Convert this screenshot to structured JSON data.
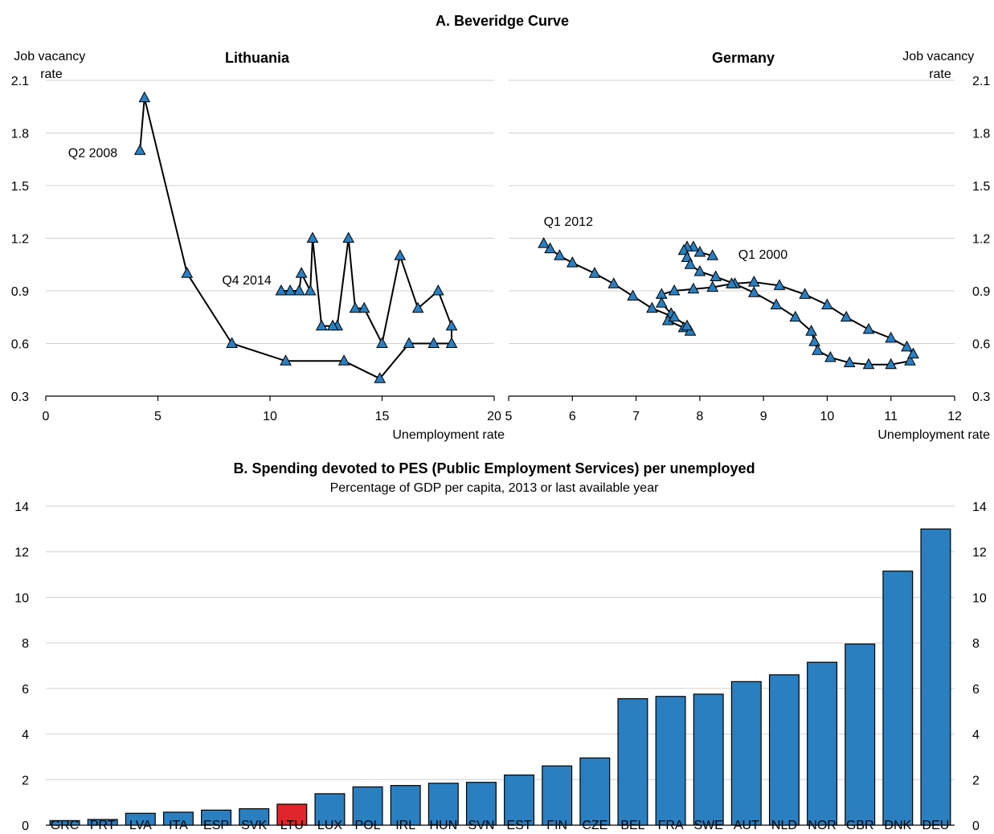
{
  "panel_a_title": "A. Beveridge Curve",
  "panel_b_title": "B. Spending devoted to PES (Public Employment Services) per unemployed",
  "panel_b_subtitle": "Percentage of GDP per capita, 2013 or last available year",
  "colors": {
    "bar": "#2a7fc1",
    "highlight": "#e0262a",
    "marker": "#2a7fc1"
  },
  "chart_data": [
    {
      "type": "line",
      "title": "Lithuania",
      "ylabel": "Job vacancy rate",
      "xlabel": "Unemployment rate",
      "xlim": [
        0,
        20
      ],
      "ylim": [
        0.3,
        2.1
      ],
      "x_ticks": [
        "0",
        "5",
        "10",
        "15",
        "20"
      ],
      "y_ticks": [
        "0.3",
        "0.6",
        "0.9",
        "1.2",
        "1.5",
        "1.8",
        "2.1"
      ],
      "grid": true,
      "marker": "triangle",
      "annotations": [
        {
          "text": "Q2 2008",
          "x": 4.2,
          "y": 1.7
        },
        {
          "text": "Q4 2014",
          "x": 10.6,
          "y": 0.9
        }
      ],
      "series": [
        {
          "x": [
            4.2,
            4.4,
            6.3,
            8.3,
            10.7,
            13.3,
            14.9,
            16.2,
            17.3,
            18.1,
            18.1,
            17.5,
            16.6,
            15.8,
            15.0,
            14.2,
            13.8,
            13.5,
            13.0,
            12.8,
            12.3,
            11.9,
            11.8,
            11.4,
            11.3,
            10.9,
            10.5
          ],
          "y": [
            1.7,
            2.0,
            1.0,
            0.6,
            0.5,
            0.5,
            0.4,
            0.6,
            0.6,
            0.6,
            0.7,
            0.9,
            0.8,
            1.1,
            0.6,
            0.8,
            0.8,
            1.2,
            0.7,
            0.7,
            0.7,
            1.2,
            0.9,
            1.0,
            0.9,
            0.9,
            0.9
          ]
        }
      ]
    },
    {
      "type": "line",
      "title": "Germany",
      "ylabel": "Job vacancy rate",
      "xlabel": "Unemployment rate",
      "xlim": [
        5,
        12
      ],
      "ylim": [
        0.3,
        2.1
      ],
      "x_ticks": [
        "5",
        "6",
        "7",
        "8",
        "9",
        "10",
        "11",
        "12"
      ],
      "y_ticks": [
        "0.3",
        "0.6",
        "0.9",
        "1.2",
        "1.5",
        "1.8",
        "2.1"
      ],
      "grid": true,
      "marker": "triangle",
      "annotations": [
        {
          "text": "Q1 2012",
          "x": 5.55,
          "y": 1.17
        },
        {
          "text": "Q1 2000",
          "x": 8.2,
          "y": 1.12
        }
      ],
      "series": [
        {
          "x": [
            8.2,
            8.0,
            7.9,
            7.8,
            7.75,
            7.8,
            7.85,
            8.0,
            8.25,
            8.55,
            8.85,
            9.2,
            9.5,
            9.75,
            9.8,
            9.85,
            10.05,
            10.35,
            10.65,
            11.0,
            11.3,
            11.35,
            11.25,
            11.0,
            10.65,
            10.3,
            10.0,
            9.65,
            9.25,
            8.85,
            8.5,
            8.2,
            7.9,
            7.6,
            7.4,
            7.4,
            7.55,
            7.5,
            7.75,
            7.85,
            7.8,
            7.6,
            7.25,
            6.95,
            6.65,
            6.35,
            6.0,
            5.8,
            5.65,
            5.55
          ],
          "y": [
            1.1,
            1.12,
            1.15,
            1.15,
            1.13,
            1.09,
            1.05,
            1.01,
            0.98,
            0.94,
            0.89,
            0.82,
            0.75,
            0.67,
            0.61,
            0.56,
            0.52,
            0.49,
            0.48,
            0.48,
            0.5,
            0.54,
            0.58,
            0.63,
            0.68,
            0.75,
            0.82,
            0.88,
            0.93,
            0.95,
            0.94,
            0.92,
            0.91,
            0.9,
            0.88,
            0.83,
            0.77,
            0.73,
            0.69,
            0.67,
            0.7,
            0.75,
            0.8,
            0.87,
            0.94,
            1.0,
            1.06,
            1.1,
            1.14,
            1.17
          ]
        }
      ]
    },
    {
      "type": "bar",
      "title": "B. Spending devoted to PES (Public Employment Services) per unemployed",
      "subtitle": "Percentage of GDP per capita, 2013 or last available year",
      "ylim": [
        0,
        14
      ],
      "y_ticks": [
        "0",
        "2",
        "4",
        "6",
        "8",
        "10",
        "12",
        "14"
      ],
      "grid": true,
      "highlight": "LTU",
      "categories": [
        "GRC",
        "PRT",
        "LVA",
        "ITA",
        "ESP",
        "SVK",
        "LTU",
        "LUX",
        "POL",
        "IRL",
        "HUN",
        "SVN",
        "EST",
        "FIN",
        "CZE",
        "BEL",
        "FRA",
        "SWE",
        "AUT",
        "NLD",
        "NOR",
        "GBR",
        "DNK",
        "DEU"
      ],
      "values": [
        0.2,
        0.25,
        0.52,
        0.57,
        0.66,
        0.72,
        0.92,
        1.38,
        1.68,
        1.74,
        1.84,
        1.88,
        2.2,
        2.6,
        2.95,
        5.55,
        5.65,
        5.75,
        6.3,
        6.6,
        7.15,
        7.95,
        11.15,
        13.0
      ]
    }
  ]
}
